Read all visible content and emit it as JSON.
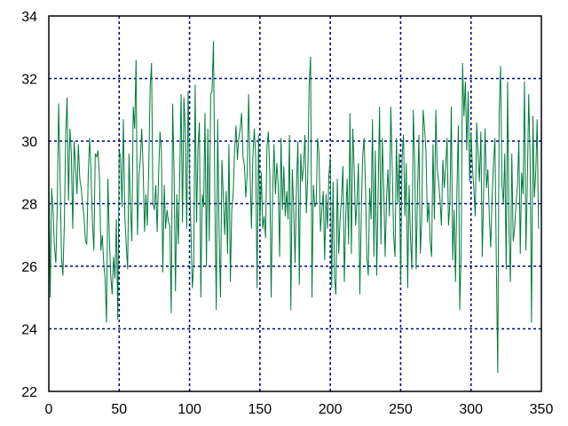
{
  "chart_data": {
    "type": "line",
    "title": "",
    "xlabel": "",
    "ylabel": "",
    "xlim": [
      0,
      350
    ],
    "ylim": [
      22,
      34
    ],
    "xticks": [
      0,
      50,
      100,
      150,
      200,
      250,
      300,
      350
    ],
    "yticks": [
      22,
      24,
      26,
      28,
      30,
      32,
      34
    ],
    "xtick_labels": [
      "0",
      "50",
      "100",
      "150",
      "200",
      "250",
      "300",
      "350"
    ],
    "ytick_labels": [
      "22",
      "24",
      "26",
      "28",
      "30",
      "32",
      "34"
    ],
    "grid": true,
    "legend": "none",
    "colors": {
      "line": "#007a3d",
      "grid": "#00008b",
      "frame": "#000000"
    },
    "series": [
      {
        "x_start": 0,
        "x_step": 1,
        "values": [
          29.1,
          25.0,
          28.5,
          27.8,
          26.6,
          26.1,
          27.9,
          31.2,
          28.9,
          26.3,
          25.7,
          27.3,
          30.2,
          31.4,
          28.1,
          30.4,
          29.6,
          27.2,
          30.0,
          29.2,
          28.3,
          29.9,
          28.8,
          28.5,
          28.0,
          27.6,
          26.8,
          26.7,
          28.9,
          30.1,
          29.0,
          27.4,
          26.5,
          29.6,
          29.5,
          29.7,
          28.8,
          26.5,
          27.0,
          26.1,
          25.6,
          24.2,
          28.8,
          26.9,
          25.7,
          25.1,
          26.3,
          25.6,
          27.5,
          24.3,
          29.7,
          29.5,
          27.9,
          30.7,
          27.6,
          26.7,
          25.9,
          29.6,
          27.9,
          26.8,
          31.1,
          30.4,
          32.6,
          27.0,
          28.9,
          29.4,
          30.4,
          29.2,
          27.1,
          28.3,
          27.3,
          29.1,
          31.7,
          32.5,
          28.0,
          27.8,
          28.6,
          27.1,
          28.9,
          30.3,
          29.7,
          25.8,
          28.6,
          27.2,
          27.8,
          27.4,
          27.3,
          24.5,
          31.2,
          29.0,
          25.2,
          28.3,
          26.7,
          28.8,
          31.5,
          27.4,
          31.4,
          30.3,
          27.2,
          31.6,
          28.9,
          27.1,
          25.3,
          26.1,
          31.8,
          27.4,
          29.8,
          30.6,
          25.0,
          28.3,
          27.9,
          30.9,
          26.0,
          30.4,
          26.8,
          31.5,
          31.6,
          33.2,
          28.1,
          24.6,
          30.7,
          27.0,
          25.0,
          29.4,
          28.2,
          27.0,
          28.4,
          26.4,
          29.9,
          25.5,
          27.8,
          28.3,
          29.7,
          30.5,
          29.4,
          30.1,
          30.4,
          30.9,
          29.5,
          29.2,
          28.2,
          29.0,
          31.5,
          29.0,
          27.2,
          29.5,
          30.4,
          29.5,
          25.3,
          30.2,
          27.3,
          29.0,
          27.2,
          27.6,
          26.9,
          29.8,
          30.3,
          29.0,
          25.0,
          28.3,
          29.9,
          28.3,
          29.3,
          28.6,
          26.3,
          30.1,
          27.8,
          29.2,
          27.6,
          28.4,
          27.5,
          30.2,
          24.6,
          29.1,
          27.9,
          26.1,
          28.6,
          30.0,
          25.4,
          29.6,
          28.7,
          29.2,
          30.2,
          27.7,
          28.9,
          31.8,
          32.7,
          25.0,
          28.6,
          27.9,
          28.0,
          30.1,
          29.6,
          27.1,
          27.8,
          28.4,
          26.2,
          28.3,
          27.2,
          28.9,
          29.5,
          25.3,
          28.7,
          25.6,
          25.1,
          28.8,
          26.4,
          27.5,
          28.2,
          29.2,
          25.5,
          27.6,
          28.8,
          26.7,
          30.9,
          26.4,
          30.4,
          29.1,
          27.3,
          28.1,
          29.3,
          25.1,
          27.6,
          29.5,
          30.1,
          28.6,
          26.3,
          25.7,
          28.5,
          27.5,
          30.7,
          26.3,
          29.7,
          25.7,
          28.3,
          31.1,
          26.7,
          30.1,
          28.4,
          26.3,
          28.2,
          29.1,
          27.6,
          31.1,
          29.2,
          27.0,
          26.3,
          30.1,
          28.0,
          29.6,
          25.4,
          29.5,
          30.2,
          27.6,
          29.3,
          25.3,
          28.6,
          26.9,
          25.9,
          31.0,
          29.3,
          25.9,
          28.4,
          30.2,
          26.4,
          27.5,
          31.0,
          30.4,
          29.7,
          27.4,
          28.0,
          26.8,
          26.3,
          29.9,
          27.5,
          31.0,
          29.1,
          28.7,
          28.1,
          27.3,
          29.4,
          28.5,
          29.2,
          30.1,
          27.3,
          28.0,
          31.1,
          26.2,
          27.8,
          25.5,
          28.4,
          30.5,
          24.6,
          26.5,
          32.5,
          30.8,
          31.9,
          29.7,
          31.6,
          28.7,
          30.3,
          29.2,
          28.5,
          27.6,
          30.6,
          29.6,
          28.7,
          30.3,
          26.3,
          28.4,
          30.4,
          28.5,
          29.1,
          27.6,
          26.6,
          28.2,
          29.3,
          30.1,
          26.1,
          22.6,
          30.9,
          32.4,
          28.6,
          28.0,
          29.6,
          25.9,
          31.9,
          27.1,
          25.5,
          29.6,
          26.8,
          27.2,
          28.0,
          28.6,
          30.0,
          26.4,
          29.0,
          28.3,
          31.9,
          26.5,
          28.6,
          31.5,
          29.4,
          24.2,
          30.8,
          28.2,
          29.0,
          30.7,
          27.2
        ]
      }
    ]
  }
}
